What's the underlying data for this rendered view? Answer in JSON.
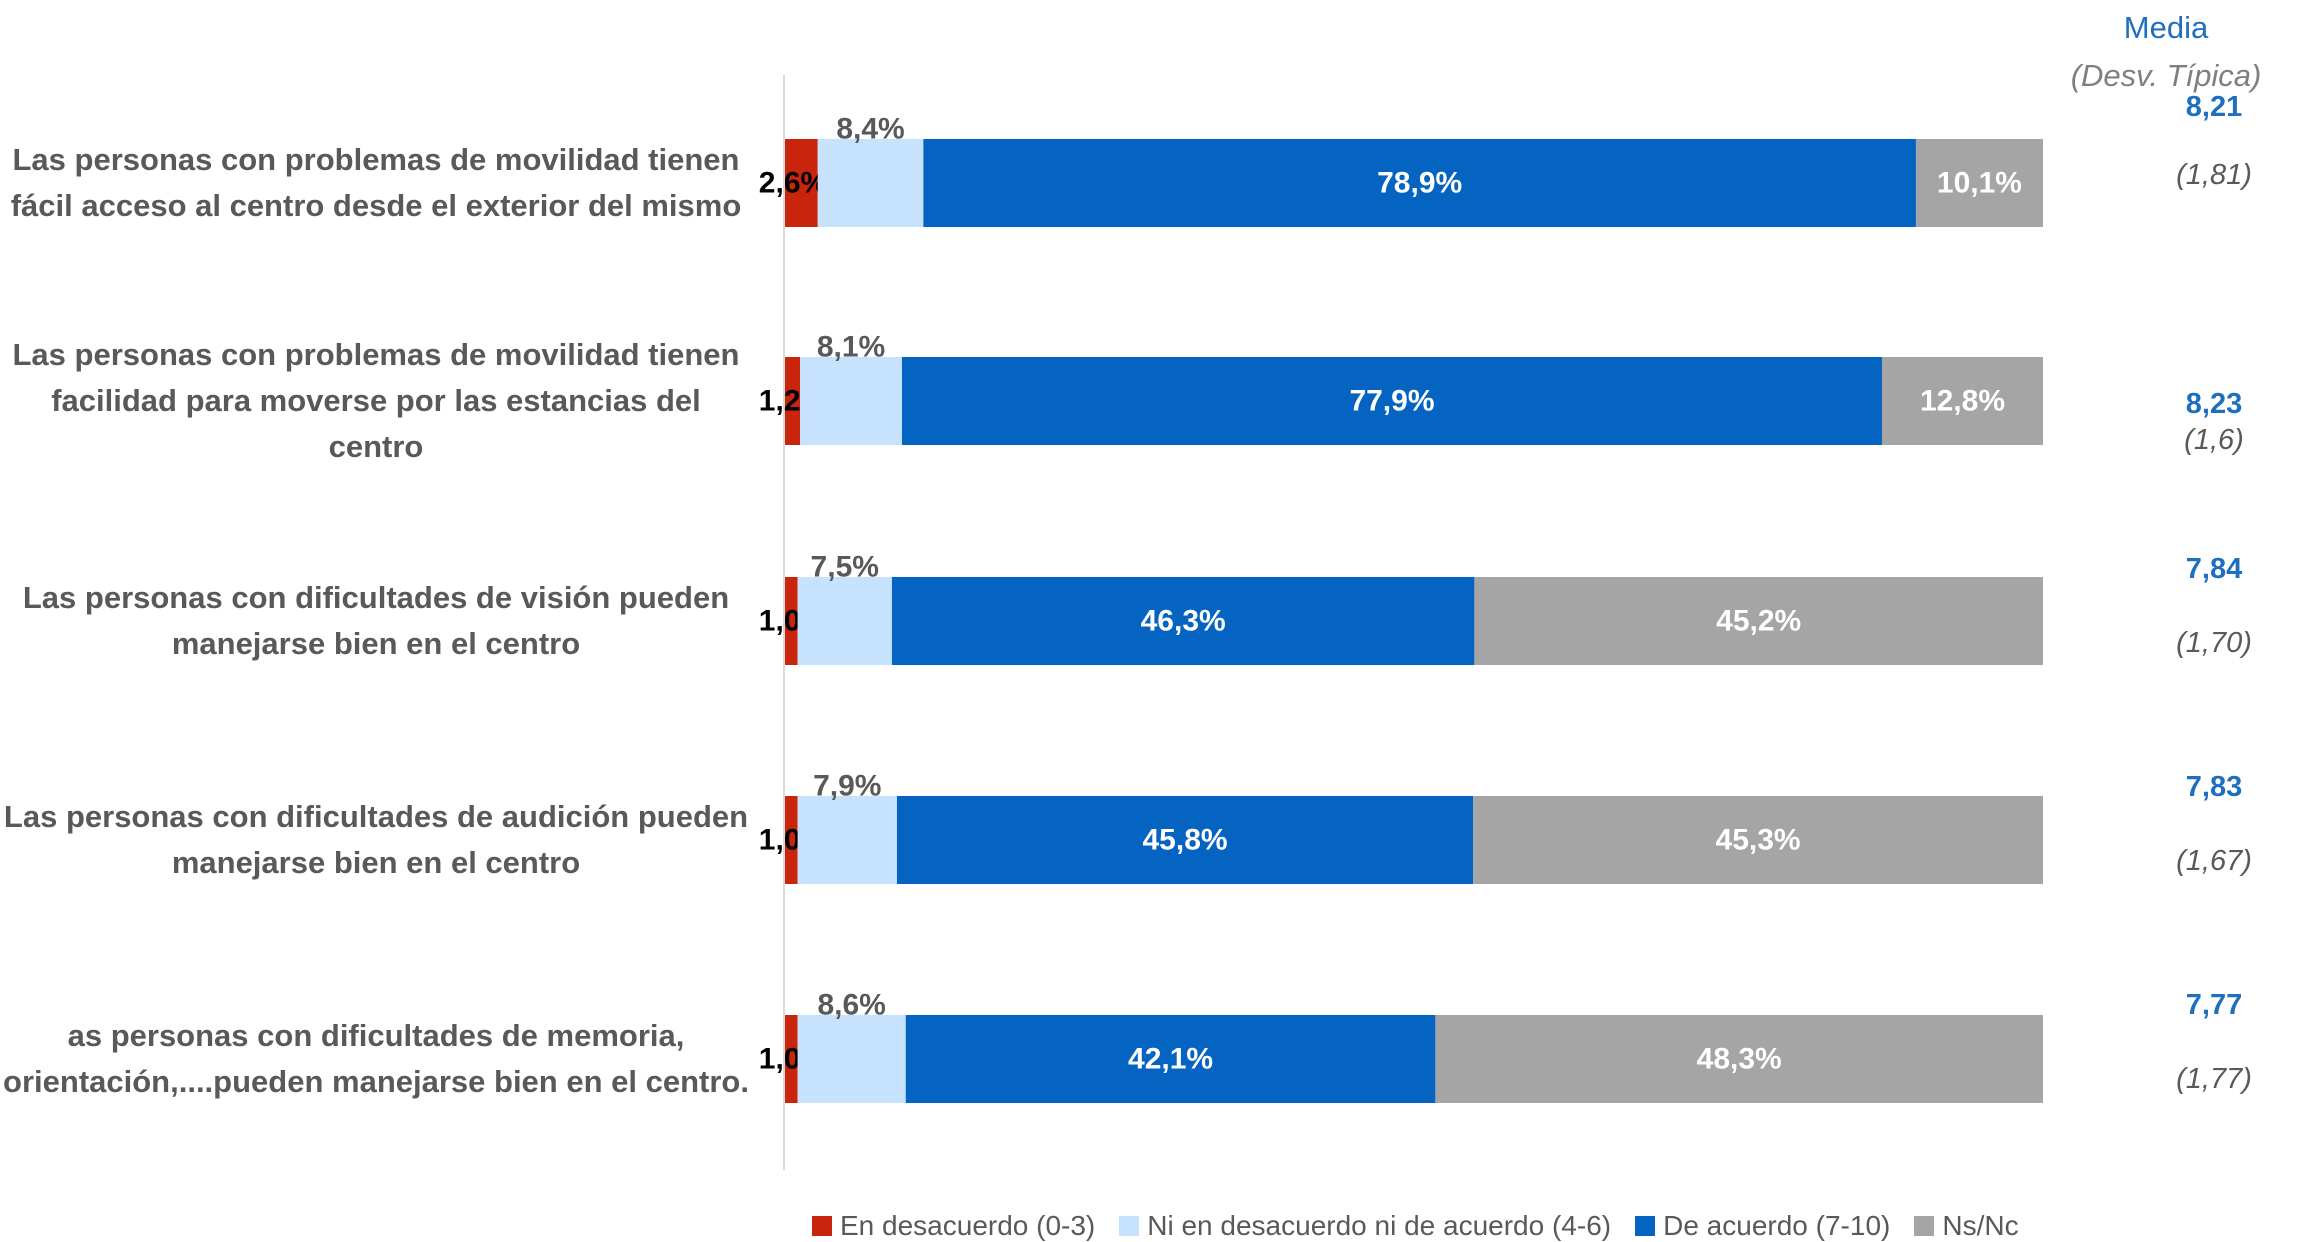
{
  "media_header": {
    "title": "Media",
    "subtitle": "(Desv. Típica)"
  },
  "chart_data": {
    "type": "bar",
    "orientation": "horizontal",
    "stacked": true,
    "xlim": [
      0,
      100
    ],
    "grid": false,
    "legend_position": "bottom",
    "categories": [
      "Las personas con problemas de movilidad tienen fácil acceso al centro desde el exterior del mismo",
      "Las personas con problemas de movilidad tienen facilidad para moverse por las estancias del centro",
      "Las personas con dificultades de visión pueden manejarse bien en el centro",
      "Las personas con dificultades de audición pueden manejarse bien en el centro",
      "as personas con dificultades de memoria, orientación,....pueden manejarse bien en el centro."
    ],
    "series": [
      {
        "name": "En desacuerdo (0-3)",
        "color": "#c8250c",
        "label_color": "#000000",
        "values": [
          2.6,
          1.2,
          1.0,
          1.0,
          1.0
        ],
        "labels": [
          "2,6%",
          "1,2%",
          "1,0%",
          "1,0%",
          "1,0%"
        ]
      },
      {
        "name": "Ni en desacuerdo ni de acuerdo (4-6)",
        "color": "#c6e2fc",
        "label_color": "#595959",
        "values": [
          8.4,
          8.1,
          7.5,
          7.9,
          8.6
        ],
        "labels": [
          "8,4%",
          "8,1%",
          "7,5%",
          "7,9%",
          "8,6%"
        ]
      },
      {
        "name": "De acuerdo (7-10)",
        "color": "#0563c1",
        "label_color": "#ffffff",
        "values": [
          78.9,
          77.9,
          46.3,
          45.8,
          42.1
        ],
        "labels": [
          "78,9%",
          "77,9%",
          "46,3%",
          "45,8%",
          "42,1%"
        ]
      },
      {
        "name": "Ns/Nc",
        "color": "#a5a5a5",
        "label_color": "#ffffff",
        "values": [
          10.1,
          12.8,
          45.2,
          45.3,
          48.3
        ],
        "labels": [
          "10,1%",
          "12,8%",
          "45,2%",
          "45,3%",
          "48,3%"
        ]
      }
    ],
    "stats": [
      {
        "mean": "8,21",
        "sd": "(1,81)"
      },
      {
        "mean": "8,23",
        "sd": "(1,6)"
      },
      {
        "mean": "7,84",
        "sd": "(1,70)"
      },
      {
        "mean": "7,83",
        "sd": "(1,67)"
      },
      {
        "mean": "7,77",
        "sd": "(1,77)"
      }
    ]
  }
}
